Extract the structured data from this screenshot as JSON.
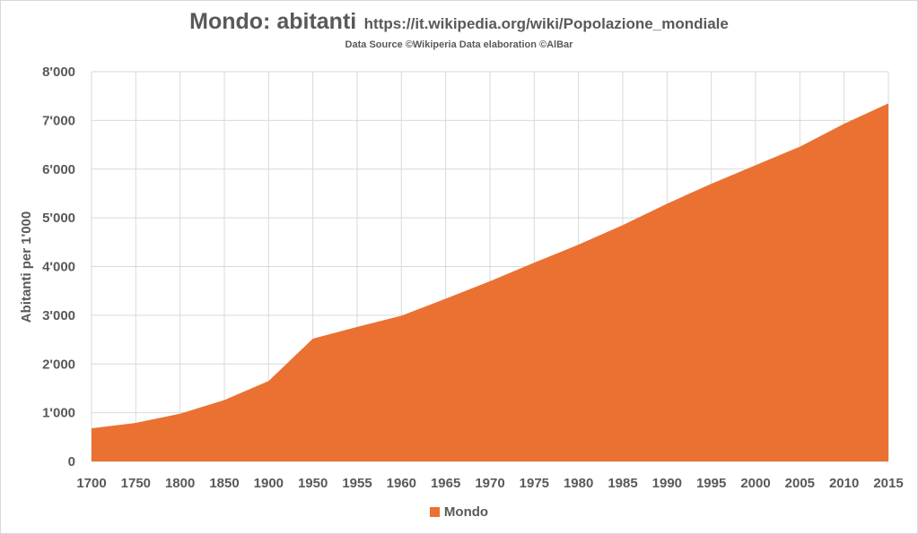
{
  "title": "Mondo: abitanti",
  "title_url": "https://it.wikipedia.org/wiki/Popolazione_mondiale",
  "subtitle": "Data Source ©Wikiperia Data elaboration ©AlBar",
  "colors": {
    "series": "#ea7132",
    "grid": "#d9d9d9",
    "text": "#595959"
  },
  "chart_data": {
    "type": "area",
    "ylabel": "Abitanti per 1'000",
    "ylim": [
      0,
      8000
    ],
    "yticks": [
      0,
      1000,
      2000,
      3000,
      4000,
      5000,
      6000,
      7000,
      8000
    ],
    "ytick_labels": [
      "0",
      "1'000",
      "2'000",
      "3'000",
      "4'000",
      "5'000",
      "6'000",
      "7'000",
      "8'000"
    ],
    "categories": [
      "1700",
      "1750",
      "1800",
      "1850",
      "1900",
      "1950",
      "1955",
      "1960",
      "1965",
      "1970",
      "1975",
      "1980",
      "1985",
      "1990",
      "1995",
      "2000",
      "2005",
      "2010",
      "2015"
    ],
    "series": [
      {
        "name": "Mondo",
        "values": [
          680,
          790,
          980,
          1260,
          1650,
          2520,
          2760,
          2990,
          3340,
          3700,
          4080,
          4450,
          4850,
          5290,
          5700,
          6080,
          6460,
          6930,
          7350
        ]
      }
    ],
    "grid": true,
    "legend": "bottom"
  }
}
